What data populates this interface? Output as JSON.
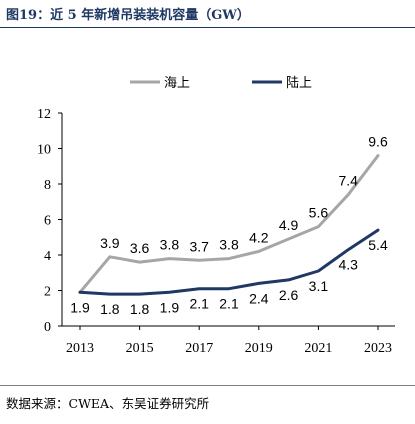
{
  "title": "图19：近 5 年新增吊装装机容量（GW）",
  "source": "数据来源：CWEA、东吴证券研究所",
  "chart_data": {
    "type": "line",
    "x": [
      2013,
      2014,
      2015,
      2016,
      2017,
      2018,
      2019,
      2020,
      2021,
      2022,
      2023
    ],
    "xticks": [
      "2013",
      "2015",
      "2017",
      "2019",
      "2021",
      "2023"
    ],
    "yticks": [
      "0",
      "2",
      "4",
      "6",
      "8",
      "10",
      "12"
    ],
    "ylim": [
      0,
      12
    ],
    "grid": false,
    "legend_position": "top",
    "series": [
      {
        "name": "海上",
        "color": "#a6a6a6",
        "values": [
          1.9,
          3.9,
          3.6,
          3.8,
          3.7,
          3.8,
          4.2,
          4.9,
          5.6,
          7.4,
          9.6
        ],
        "labels": [
          "",
          "3.9",
          "3.6",
          "3.8",
          "3.7",
          "3.8",
          "4.2",
          "4.9",
          "5.6",
          "7.4",
          "9.6"
        ]
      },
      {
        "name": "陆上",
        "color": "#1f3864",
        "values": [
          1.9,
          1.8,
          1.8,
          1.9,
          2.1,
          2.1,
          2.4,
          2.6,
          3.1,
          4.3,
          5.4
        ],
        "labels": [
          "1.9",
          "1.8",
          "1.8",
          "1.9",
          "2.1",
          "2.1",
          "2.4",
          "2.6",
          "3.1",
          "4.3",
          "5.4"
        ]
      }
    ]
  }
}
